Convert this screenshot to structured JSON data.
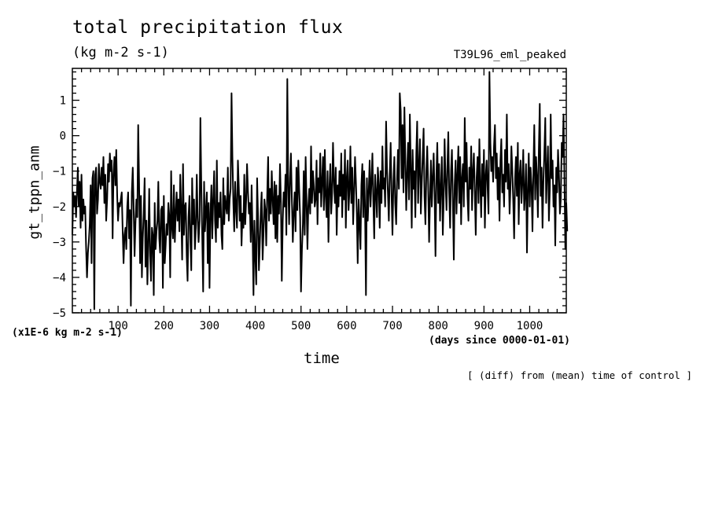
{
  "header": {
    "title": "total precipitation flux",
    "units": "(kg m-2 s-1)",
    "run_name": "T39L96_eml_peaked"
  },
  "footer": {
    "scale_note": "(x1E-6 kg m-2 s-1)",
    "time_units": "(days since 0000-01-01)",
    "operation_note": "[ (diff) from (mean) time of control ]"
  },
  "chart_data": {
    "type": "line",
    "title": "total precipitation flux",
    "xlabel": "time",
    "ylabel": "gt_tppn_anm",
    "xlim": [
      0,
      1080
    ],
    "ylim": [
      -5,
      1.9
    ],
    "x_ticks": [
      100,
      200,
      300,
      400,
      500,
      600,
      700,
      800,
      900,
      1000
    ],
    "y_ticks": [
      -5,
      -4,
      -3,
      -2,
      -1,
      0,
      1
    ],
    "grid": false,
    "legend": "none",
    "line_color": "#000000",
    "series": [
      {
        "x_start": 0,
        "x_step": 2,
        "values": [
          -2.8,
          -1.6,
          -2.0,
          -1.7,
          -2.3,
          -1.6,
          -0.9,
          -2.0,
          -1.3,
          -2.6,
          -1.1,
          -2.4,
          -1.8,
          -2.2,
          -2.0,
          -3.1,
          -4.0,
          -3.3,
          -3.0,
          -2.5,
          -1.4,
          -3.6,
          -1.2,
          -1.0,
          -4.9,
          -1.1,
          -0.9,
          -2.2,
          -1.8,
          -0.8,
          -1.3,
          -1.5,
          -0.9,
          -1.4,
          -0.6,
          -1.9,
          -1.1,
          -2.4,
          -1.8,
          -0.8,
          -1.3,
          -0.5,
          -1.0,
          -0.7,
          -2.9,
          -1.1,
          -0.6,
          -1.4,
          -0.4,
          -1.7,
          -2.4,
          -1.9,
          -2.0,
          -1.8,
          -1.6,
          -2.7,
          -3.6,
          -2.8,
          -2.6,
          -3.2,
          -2.0,
          -1.6,
          -2.9,
          -2.1,
          -4.8,
          -1.6,
          -0.9,
          -2.0,
          -3.4,
          -2.5,
          -1.8,
          -2.3,
          0.3,
          -1.4,
          -3.6,
          -1.7,
          -4.0,
          -2.9,
          -2.2,
          -1.2,
          -3.7,
          -2.4,
          -4.2,
          -3.1,
          -1.5,
          -3.4,
          -4.1,
          -2.6,
          -2.8,
          -4.5,
          -1.9,
          -3.2,
          -2.7,
          -2.4,
          -1.3,
          -2.9,
          -3.3,
          -2.1,
          -2.0,
          -4.3,
          -1.7,
          -3.6,
          -3.1,
          -2.5,
          -2.8,
          -1.9,
          -2.3,
          -4.0,
          -1.0,
          -2.6,
          -2.9,
          -1.4,
          -3.0,
          -2.2,
          -1.6,
          -2.4,
          -1.8,
          -2.7,
          -1.1,
          -2.1,
          -3.5,
          -0.8,
          -2.8,
          -2.0,
          -1.9,
          -3.4,
          -4.1,
          -2.3,
          -1.7,
          -2.9,
          -3.8,
          -1.2,
          -2.5,
          -1.8,
          -3.2,
          -2.6,
          -1.1,
          -2.3,
          -3.0,
          -2.4,
          0.5,
          -1.5,
          -2.8,
          -4.4,
          -1.3,
          -2.7,
          -2.1,
          -1.6,
          -3.6,
          -1.9,
          -4.3,
          -2.2,
          -1.4,
          -2.9,
          -1.8,
          -1.0,
          -2.4,
          -3.0,
          -0.7,
          -2.6,
          -1.9,
          -2.3,
          -1.6,
          -2.8,
          -3.2,
          -1.2,
          -2.5,
          -1.7,
          -2.0,
          -2.2,
          -0.9,
          -2.4,
          -1.8,
          -1.5,
          1.2,
          -0.6,
          -1.9,
          -2.7,
          -1.3,
          -2.1,
          -2.6,
          -0.7,
          -1.5,
          -2.4,
          -1.7,
          -3.1,
          -2.2,
          -2.6,
          -1.1,
          -2.5,
          -1.8,
          -0.8,
          -1.6,
          -2.2,
          -1.9,
          -3.0,
          -1.4,
          -2.7,
          -4.5,
          -2.4,
          -3.4,
          -4.2,
          -1.2,
          -2.3,
          -3.8,
          -3.0,
          -2.1,
          -1.6,
          -3.5,
          -2.7,
          -1.8,
          -2.1,
          -3.1,
          -1.7,
          -0.6,
          -2.4,
          -1.5,
          -2.2,
          -1.0,
          -1.8,
          -2.5,
          -1.3,
          -2.9,
          -1.4,
          -3.0,
          -1.7,
          -2.2,
          -0.8,
          -1.9,
          -4.1,
          -2.4,
          -1.6,
          -2.0,
          -1.1,
          -2.8,
          1.6,
          -1.4,
          -2.5,
          -1.2,
          -0.5,
          -1.8,
          -3.0,
          -2.2,
          -1.6,
          -2.7,
          -0.9,
          -2.1,
          -0.7,
          -1.5,
          -2.3,
          -4.4,
          -3.2,
          -2.5,
          -1.0,
          -2.8,
          -0.6,
          -1.8,
          -3.2,
          -2.0,
          -1.5,
          -2.2,
          -0.3,
          -1.9,
          -1.0,
          -1.4,
          -2.0,
          -1.8,
          -0.7,
          -2.5,
          -1.2,
          -1.6,
          -0.5,
          -2.0,
          -1.3,
          -0.6,
          -2.1,
          -0.4,
          -1.7,
          -2.3,
          -1.0,
          -3.0,
          -1.5,
          -0.8,
          -2.2,
          -1.6,
          -0.2,
          -1.3,
          -1.9,
          -0.9,
          -2.8,
          -1.4,
          -2.0,
          -1.0,
          -1.7,
          -0.5,
          -2.3,
          -1.1,
          -1.8,
          -0.4,
          -2.6,
          -1.2,
          -0.7,
          -2.1,
          -1.5,
          -0.3,
          -1.9,
          -0.9,
          -2.5,
          -1.6,
          -0.6,
          -1.3,
          -2.2,
          -3.6,
          -1.8,
          -2.5,
          -3.2,
          -1.4,
          -0.8,
          -2.3,
          -1.0,
          -2.0,
          -4.5,
          -1.2,
          -2.4,
          -1.6,
          -0.7,
          -2.0,
          -1.3,
          -0.5,
          -1.8,
          -2.9,
          -1.1,
          -1.6,
          -2.3,
          -0.9,
          -1.4,
          -2.6,
          -1.0,
          -1.9,
          -0.3,
          -1.5,
          -1.2,
          -2.0,
          0.4,
          -1.0,
          -1.6,
          -2.4,
          -1.1,
          -0.2,
          -1.7,
          -2.8,
          -1.3,
          -0.6,
          -1.9,
          -2.5,
          -1.2,
          -0.4,
          -1.5,
          1.2,
          0.7,
          -1.2,
          0.3,
          -1.6,
          0.8,
          -0.6,
          -2.1,
          -1.1,
          -0.2,
          -1.8,
          0.6,
          -0.9,
          -2.6,
          -0.4,
          -1.5,
          -1.0,
          -2.3,
          -0.5,
          0.4,
          -1.9,
          -0.8,
          -0.1,
          -2.2,
          -1.3,
          -0.6,
          0.2,
          -1.7,
          -2.5,
          -1.0,
          -0.3,
          -1.4,
          -3.0,
          -1.8,
          -0.7,
          -2.0,
          -1.2,
          -0.5,
          -1.6,
          -3.4,
          -1.1,
          -0.2,
          -1.9,
          -0.8,
          -2.4,
          -1.4,
          -0.6,
          -2.8,
          -1.7,
          -0.1,
          -1.3,
          -2.1,
          -0.9,
          0.1,
          -1.6,
          -2.6,
          -1.0,
          -0.4,
          -1.8,
          -3.5,
          -1.4,
          -0.7,
          -2.2,
          -1.1,
          -0.3,
          -1.9,
          -0.6,
          -2.5,
          -1.2,
          -0.8,
          -2.0,
          0.5,
          -1.3,
          -0.2,
          -1.7,
          -2.4,
          -0.9,
          -1.5,
          -0.3,
          -2.1,
          -1.0,
          -0.5,
          -1.6,
          -2.8,
          -1.2,
          -0.6,
          -1.9,
          -0.1,
          -1.4,
          -2.3,
          -0.8,
          -1.7,
          -0.4,
          -2.6,
          -1.1,
          -0.7,
          -1.5,
          -2.2,
          1.8,
          -0.2,
          -1.0,
          -0.6,
          -1.3,
          -0.3,
          0.3,
          -1.2,
          -0.5,
          -1.8,
          -0.9,
          -2.4,
          -0.7,
          -0.1,
          -1.6,
          -1.1,
          -2.0,
          -0.4,
          -1.3,
          0.6,
          -1.5,
          -0.8,
          -2.2,
          -1.4,
          -0.3,
          -1.0,
          -1.8,
          -2.9,
          -1.2,
          -0.6,
          -1.7,
          -0.2,
          -2.5,
          -1.1,
          -0.7,
          -1.9,
          -1.3,
          -0.4,
          -2.1,
          -1.6,
          -0.8,
          -3.3,
          -1.5,
          -0.5,
          -2.0,
          -0.9,
          -1.4,
          -2.7,
          -1.1,
          0.3,
          -1.8,
          -0.6,
          -1.2,
          -2.3,
          -0.4,
          0.9,
          -1.7,
          -0.9,
          -2.6,
          -1.3,
          -0.5,
          0.5,
          -1.9,
          -1.0,
          -0.3,
          -2.4,
          -1.5,
          0.6,
          -1.2,
          -0.7,
          -2.0,
          -1.4,
          -3.1,
          -0.9,
          -1.6,
          -0.4,
          -1.1,
          -2.2,
          -1.8,
          -0.2,
          -0.6,
          0.6,
          -1.3,
          -3.2,
          -1.9,
          -2.7
        ]
      }
    ]
  }
}
